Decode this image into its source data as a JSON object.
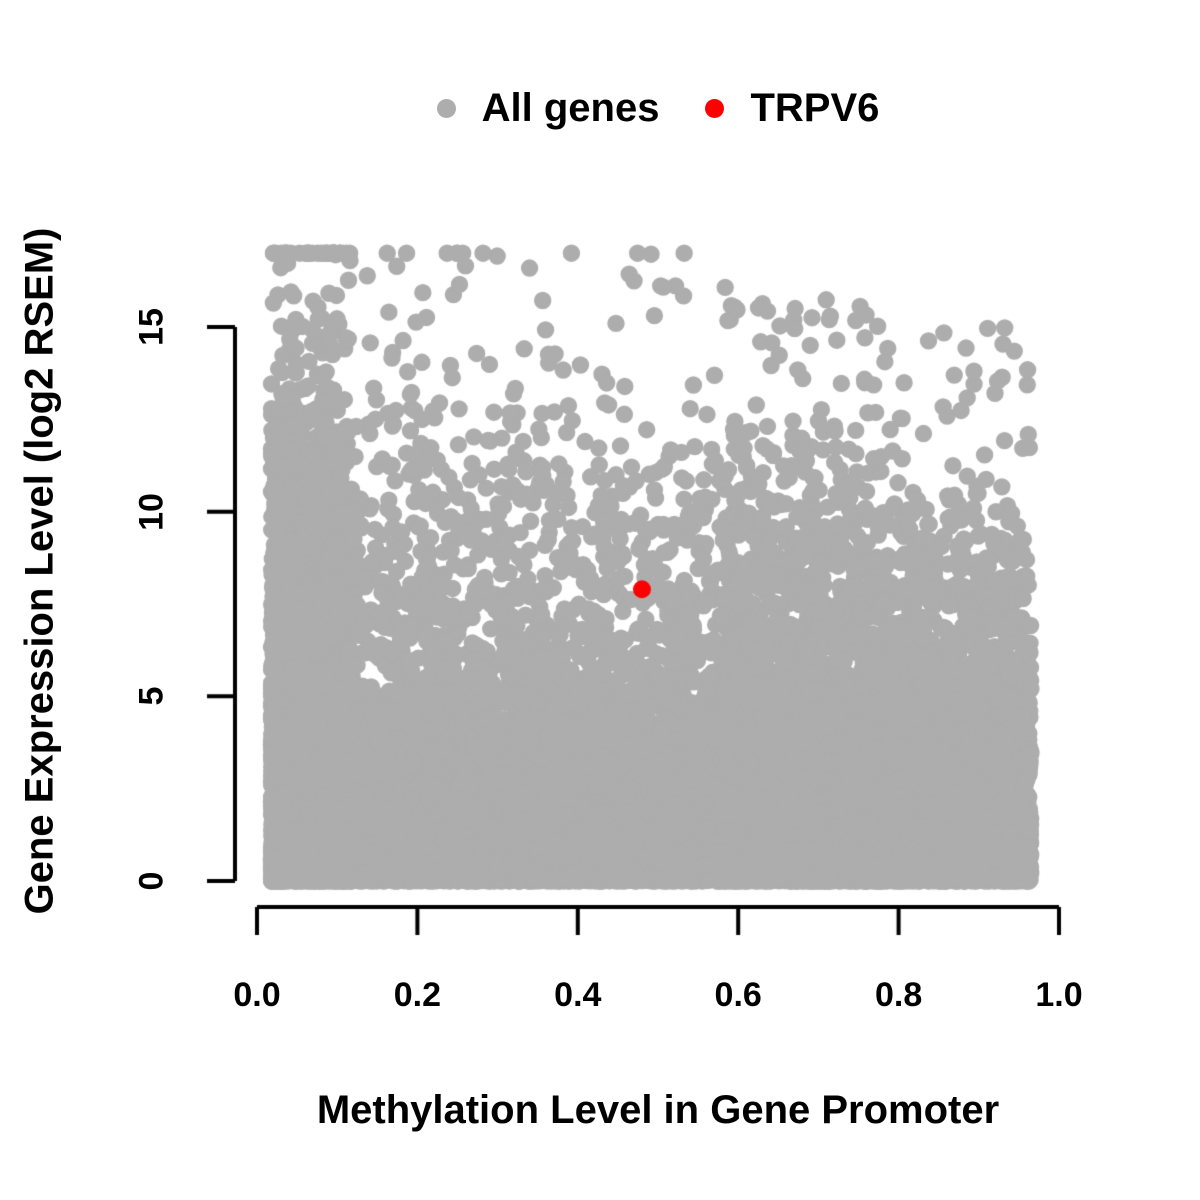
{
  "figure": {
    "background": "#ffffff",
    "text_color": "#000000"
  },
  "chart_data": {
    "type": "scatter",
    "title": "",
    "xlabel": "Methylation Level in Gene Promoter",
    "ylabel": "Gene Expression Level (log2 RSEM)",
    "xlim": [
      0.0,
      1.0
    ],
    "ylim": [
      0,
      15
    ],
    "grid": false,
    "legend_position": "top-center",
    "x_ticks": [
      {
        "v": 0.0,
        "label": "0.0"
      },
      {
        "v": 0.2,
        "label": "0.2"
      },
      {
        "v": 0.4,
        "label": "0.4"
      },
      {
        "v": 0.6,
        "label": "0.6"
      },
      {
        "v": 0.8,
        "label": "0.8"
      },
      {
        "v": 1.0,
        "label": "1.0"
      }
    ],
    "y_ticks": [
      {
        "v": 0,
        "label": "0"
      },
      {
        "v": 5,
        "label": "5"
      },
      {
        "v": 10,
        "label": "10"
      },
      {
        "v": 15,
        "label": "15"
      }
    ],
    "series": [
      {
        "name": "All genes",
        "color": "#adadad",
        "marker": "filled-circle",
        "kind": "generated-cloud",
        "x_range_observed": [
          0.015,
          0.97
        ],
        "y_range_observed": [
          0,
          17.0
        ],
        "description": "Dense cloud of ~18000 genes; methylation from 0 to ~0.97, expression 0 to ~17 with upper envelope falling from ~17 at low methylation to ~12 at high methylation; very dense near y=0 across all x and densest column at x<0.12",
        "generator": {
          "seed": 20240807,
          "n": 18000,
          "point_radius_px": 8.7,
          "x_clip": [
            0.012,
            0.968
          ],
          "y_clip": [
            0,
            17.0
          ],
          "x_components": [
            {
              "w": 0.24,
              "min": 0.018,
              "range": 0.1,
              "exp": 1.3
            },
            {
              "w": 0.58,
              "min": 0.02,
              "range": 0.945,
              "exp": 0.95
            },
            {
              "w": 0.18,
              "min": 0.58,
              "range": 0.385,
              "exp": 1.0
            }
          ],
          "envelope": {
            "a": 17.0,
            "b": -4.9,
            "noise": 0.5
          },
          "y_components": [
            {
              "w": 0.46,
              "type": "envelope_decay",
              "exp": 0.42
            },
            {
              "w": 0.34,
              "type": "pow",
              "max": 5.2,
              "exp": 1.9
            },
            {
              "w": 0.006,
              "type": "above_envelope",
              "spread": 2.4
            },
            {
              "w": 0.194,
              "type": "pow",
              "max": 1.3,
              "exp": 1.5
            }
          ]
        }
      },
      {
        "name": "TRPV6",
        "color": "#ff0000",
        "marker": "filled-circle",
        "point_radius_px": 9,
        "points": [
          [
            0.48,
            7.9
          ]
        ]
      }
    ]
  }
}
